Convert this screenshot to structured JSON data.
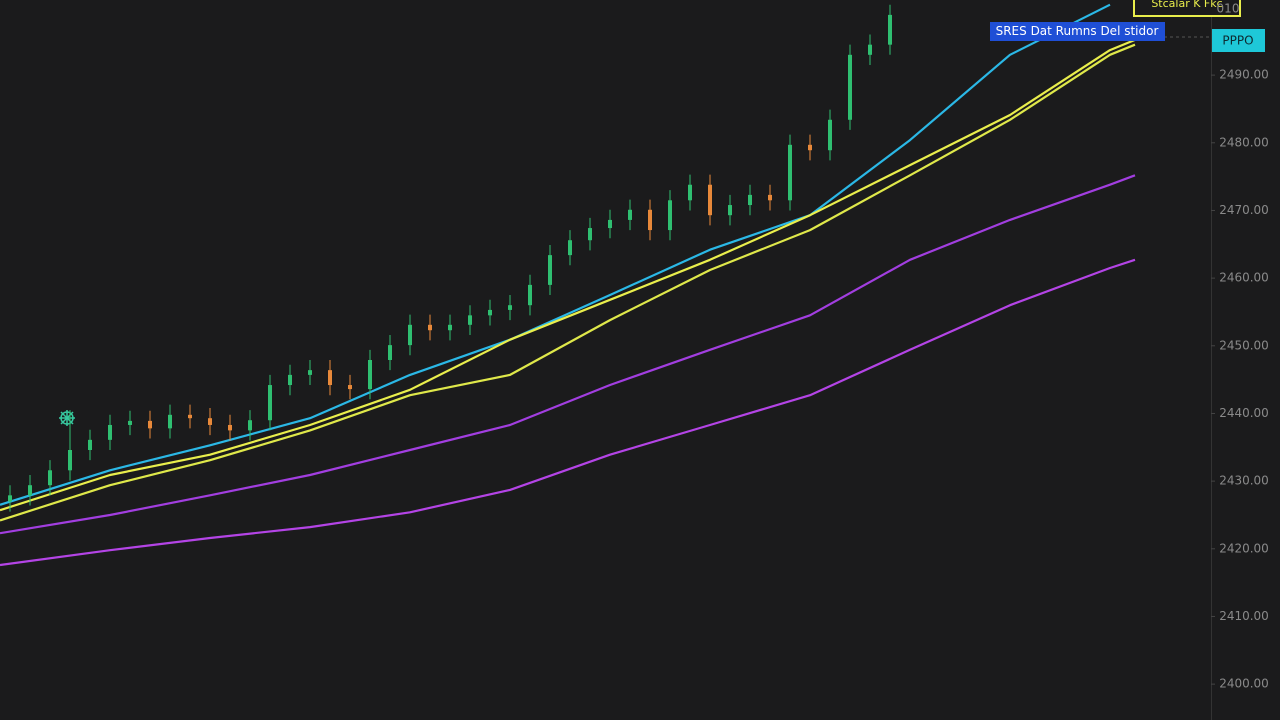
{
  "chart_data": {
    "type": "candlestick",
    "xlim": [
      -0.5,
      60
    ],
    "ylim": [
      2394.7,
      2501.1
    ],
    "yticks": [
      {
        "value": 2490,
        "label": "2490.00"
      },
      {
        "value": 2480,
        "label": "2480.00"
      },
      {
        "value": 2470,
        "label": "2470.00"
      },
      {
        "value": 2460,
        "label": "2460.00"
      },
      {
        "value": 2450,
        "label": "2450.00"
      },
      {
        "value": 2440,
        "label": "2440.00"
      },
      {
        "value": 2430,
        "label": "2430.00"
      },
      {
        "value": 2420,
        "label": "2420.00"
      },
      {
        "value": 2410,
        "label": "2410.00"
      },
      {
        "value": 2400,
        "label": "2400.00"
      }
    ],
    "up_color": "#2fbf71",
    "down_color": "#e8893a",
    "candles": {
      "x": [
        0,
        1,
        2,
        3,
        4,
        5,
        6,
        7,
        8,
        9,
        10,
        11,
        12,
        13,
        14,
        15,
        16,
        17,
        18,
        19,
        20,
        21,
        22,
        23,
        24,
        25,
        26,
        27,
        28,
        29,
        30,
        31,
        32,
        33,
        34,
        35,
        36,
        37,
        38,
        39,
        40,
        41,
        42,
        43,
        44
      ],
      "open": [
        2427.0,
        2427.9,
        2429.4,
        2431.6,
        2434.6,
        2436.1,
        2438.3,
        2438.9,
        2437.8,
        2439.8,
        2439.3,
        2438.3,
        2437.5,
        2439.0,
        2444.2,
        2445.7,
        2446.4,
        2444.2,
        2443.6,
        2447.9,
        2450.1,
        2453.1,
        2452.3,
        2453.1,
        2454.5,
        2455.3,
        2456.0,
        2459.0,
        2463.4,
        2465.6,
        2467.4,
        2468.6,
        2470.1,
        2467.1,
        2471.5,
        2473.8,
        2469.3,
        2470.8,
        2472.3,
        2471.5,
        2479.7,
        2478.9,
        2483.4,
        2493.0,
        2494.5
      ],
      "high": [
        2429.4,
        2430.9,
        2433.1,
        2440.5,
        2437.6,
        2439.8,
        2440.4,
        2440.4,
        2441.3,
        2441.3,
        2440.8,
        2439.8,
        2440.5,
        2445.7,
        2447.2,
        2447.9,
        2447.9,
        2445.7,
        2449.4,
        2451.6,
        2454.6,
        2454.6,
        2454.6,
        2456.0,
        2456.8,
        2457.5,
        2460.5,
        2464.9,
        2467.1,
        2468.9,
        2470.1,
        2471.6,
        2471.6,
        2473.0,
        2475.3,
        2475.3,
        2472.3,
        2473.8,
        2473.8,
        2481.2,
        2481.2,
        2484.9,
        2494.5,
        2496.0,
        2500.4
      ],
      "low": [
        2425.5,
        2426.4,
        2427.9,
        2430.1,
        2433.1,
        2434.6,
        2436.8,
        2436.3,
        2436.3,
        2437.8,
        2436.8,
        2436.0,
        2436.0,
        2437.5,
        2442.7,
        2444.2,
        2442.7,
        2442.1,
        2442.1,
        2446.4,
        2448.6,
        2450.8,
        2450.8,
        2451.6,
        2453.0,
        2453.8,
        2454.5,
        2457.5,
        2461.9,
        2464.1,
        2465.9,
        2467.1,
        2465.6,
        2465.6,
        2470.0,
        2467.8,
        2467.8,
        2469.3,
        2470.0,
        2470.0,
        2477.4,
        2477.4,
        2481.9,
        2491.5,
        2493.0
      ],
      "close": [
        2427.9,
        2429.4,
        2431.6,
        2434.6,
        2436.1,
        2438.3,
        2438.9,
        2437.8,
        2439.8,
        2439.3,
        2438.3,
        2437.5,
        2439.0,
        2444.2,
        2445.7,
        2446.4,
        2444.2,
        2443.6,
        2447.9,
        2450.1,
        2453.1,
        2452.3,
        2453.1,
        2454.5,
        2455.3,
        2456.0,
        2459.0,
        2463.4,
        2465.6,
        2467.4,
        2468.6,
        2470.1,
        2467.1,
        2471.5,
        2473.8,
        2469.3,
        2470.8,
        2472.3,
        2471.5,
        2479.7,
        2478.9,
        2483.4,
        2493.0,
        2494.5,
        2498.9
      ]
    },
    "lines": [
      {
        "color": "#2bb8e6",
        "x": [
          -0.5,
          5,
          10,
          15,
          20,
          25,
          30,
          35,
          40,
          45,
          50,
          55
        ],
        "values": [
          2426.5,
          2431.6,
          2435.3,
          2439.3,
          2445.7,
          2450.9,
          2457.5,
          2464.2,
          2469.3,
          2480.4,
          2493.0,
          2500.4
        ]
      },
      {
        "color": "#e9ee4c",
        "x": [
          -0.5,
          5,
          10,
          15,
          20,
          25,
          30,
          35,
          40,
          45,
          50,
          55,
          56.25
        ],
        "values": [
          2425.7,
          2430.9,
          2433.9,
          2438.3,
          2443.5,
          2450.9,
          2456.8,
          2462.7,
          2469.3,
          2476.7,
          2484.1,
          2493.7,
          2495.2
        ]
      },
      {
        "color": "#dfe84a",
        "x": [
          -0.5,
          5,
          10,
          15,
          20,
          25,
          30,
          35,
          40,
          45,
          50,
          55,
          56.25
        ],
        "values": [
          2424.2,
          2429.4,
          2433.1,
          2437.5,
          2442.7,
          2445.7,
          2453.8,
          2461.2,
          2467.1,
          2475.2,
          2483.4,
          2493.0,
          2494.5
        ]
      },
      {
        "color": "#a23ee0",
        "x": [
          -0.5,
          5,
          10,
          15,
          20,
          25,
          30,
          35,
          40,
          45,
          50,
          55,
          56.25
        ],
        "values": [
          2422.3,
          2425.0,
          2427.9,
          2430.9,
          2434.6,
          2438.3,
          2444.2,
          2449.4,
          2454.5,
          2462.7,
          2468.6,
          2473.8,
          2475.2
        ]
      },
      {
        "color": "#b444e6",
        "x": [
          -0.5,
          5,
          10,
          15,
          20,
          25,
          30,
          35,
          40,
          45,
          50,
          55,
          56.25
        ],
        "values": [
          2417.6,
          2419.8,
          2421.6,
          2423.2,
          2425.4,
          2428.7,
          2433.9,
          2438.3,
          2442.7,
          2449.4,
          2456.0,
          2461.5,
          2462.7
        ]
      }
    ],
    "annotations": [
      "SRES Dat Rumns Del stidor",
      "Stcalar K Fkc"
    ],
    "price_label": "PPPO",
    "top_label": "010"
  }
}
